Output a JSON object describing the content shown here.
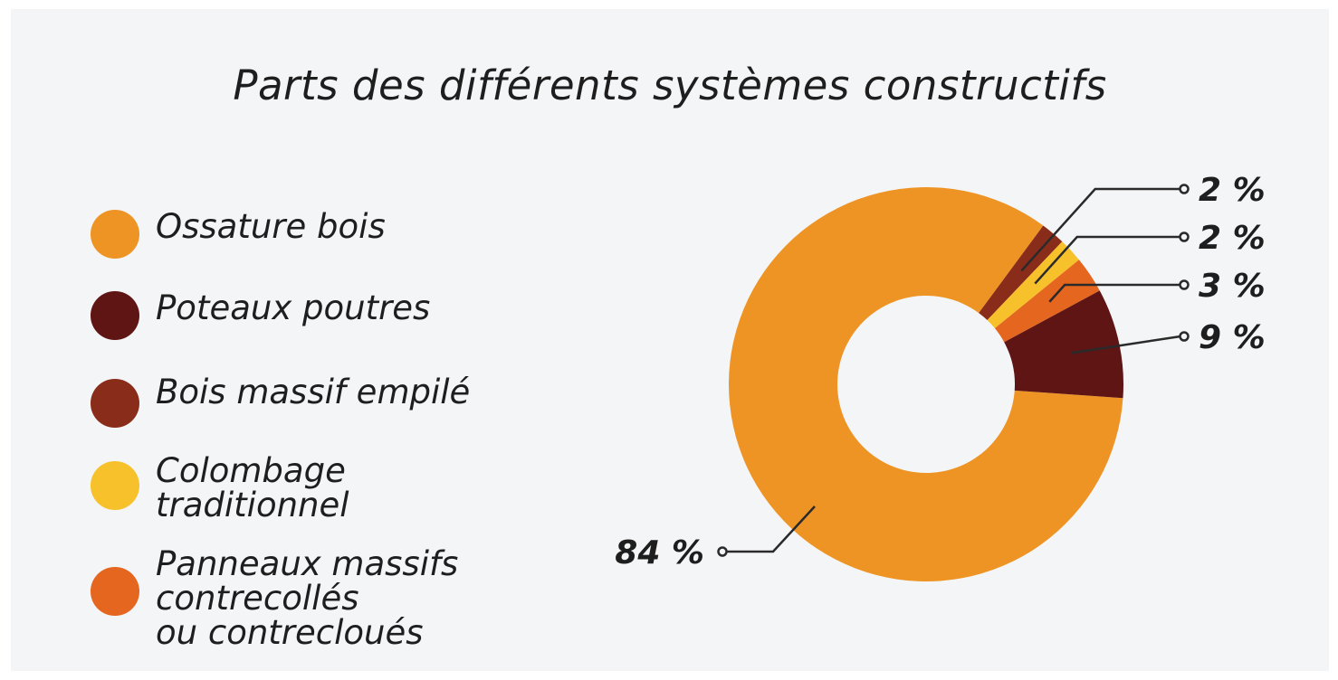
{
  "chart_data": {
    "type": "pie",
    "title": "Parts des différents systèmes constructifs",
    "legend_placement": "left",
    "slices": [
      {
        "name": "Ossature bois",
        "value": 84,
        "label": "84 %",
        "color": "#ee9425"
      },
      {
        "name": "Poteaux poutres",
        "value": 9,
        "label": "9 %",
        "color": "#5e1514"
      },
      {
        "name": "Panneaux massifs\ncontrecollés\nou contrecloués",
        "value": 3,
        "label": "3 %",
        "color": "#e5661e"
      },
      {
        "name": "Colombage\ntraditionnel",
        "value": 2,
        "label": "2 %",
        "color": "#f6c12a"
      },
      {
        "name": "Bois massif empilé",
        "value": 2,
        "label": "2 %",
        "color": "#8a2c1a"
      }
    ],
    "legend_order": [
      "Ossature bois",
      "Poteaux poutres",
      "Bois massif empilé",
      "Colombage\ntraditionnel",
      "Panneaux massifs\ncontrecollés\nou contrecloués"
    ]
  }
}
